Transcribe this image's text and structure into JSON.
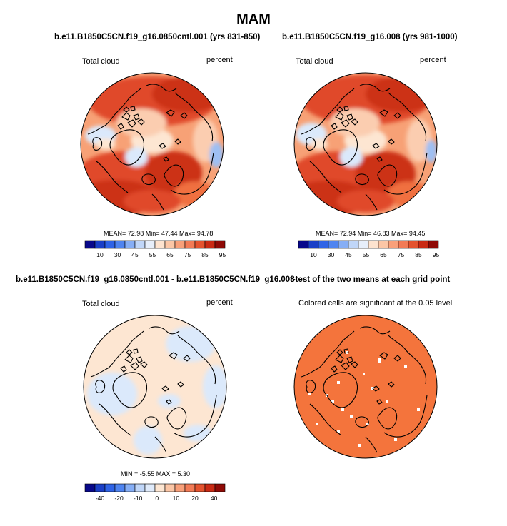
{
  "page": {
    "season_title": "MAM"
  },
  "panels": {
    "top_left": {
      "title": "b.e11.B1850C5CN.f19_g16.0850cntl.001 (yrs 831-850)",
      "variable": "Total cloud",
      "units": "percent",
      "stats_line": "MEAN= 72.98  Min= 47.44  Max= 94.78",
      "stats": {
        "mean": 72.98,
        "min": 47.44,
        "max": 94.78
      }
    },
    "top_right": {
      "title": "b.e11.B1850C5CN.f19_g16.008 (yrs 981-1000)",
      "variable": "Total cloud",
      "units": "percent",
      "stats_line": "MEAN= 72.94  Min= 46.83  Max= 94.45",
      "stats": {
        "mean": 72.94,
        "min": 46.83,
        "max": 94.45
      }
    },
    "bottom_left": {
      "title": "b.e11.B1850C5CN.f19_g16.0850cntl.001 - b.e11.B1850C5CN.f19_g16.008",
      "variable": "Total cloud",
      "units": "percent",
      "stats_line": "MIN =  -5.55  MAX =   5.30",
      "stats": {
        "min": -5.55,
        "max": 5.3
      }
    },
    "bottom_right": {
      "title": "t-test of the two means at each grid point",
      "subtitle": "Colored cells are significant at the 0.05 level"
    }
  },
  "colorbars": {
    "absolute": {
      "colors": [
        "#08088a",
        "#1a3fc7",
        "#2f63e6",
        "#4f84f0",
        "#86aef5",
        "#c0d6f8",
        "#e6eefa",
        "#fde3cf",
        "#fbc6a6",
        "#f8a07a",
        "#f27b56",
        "#e4532f",
        "#c92a14",
        "#8f0a06"
      ],
      "labels": [
        "10",
        "30",
        "45",
        "55",
        "65",
        "75",
        "85",
        "95"
      ]
    },
    "difference": {
      "colors": [
        "#08088a",
        "#1a3fc7",
        "#2f63e6",
        "#4f84f0",
        "#86aef5",
        "#c0d6f8",
        "#dfeafa",
        "#fde6d2",
        "#fbc6a6",
        "#f8a07a",
        "#f27b56",
        "#e4532f",
        "#c92a14",
        "#8f0a06"
      ],
      "labels": [
        "-40",
        "-20",
        "-10",
        "0",
        "10",
        "20",
        "40"
      ]
    }
  },
  "map_colors": {
    "ocean_deep_red": "#cc3016",
    "red": "#e0492a",
    "orange": "#f0703f",
    "salmon": "#f7a176",
    "light_salmon": "#fbcdb0",
    "pale": "#fde6d2",
    "light_blue": "#dbe9fb",
    "blue": "#9ebff3",
    "ttest_orange": "#f4743c",
    "coast": "#000000"
  }
}
